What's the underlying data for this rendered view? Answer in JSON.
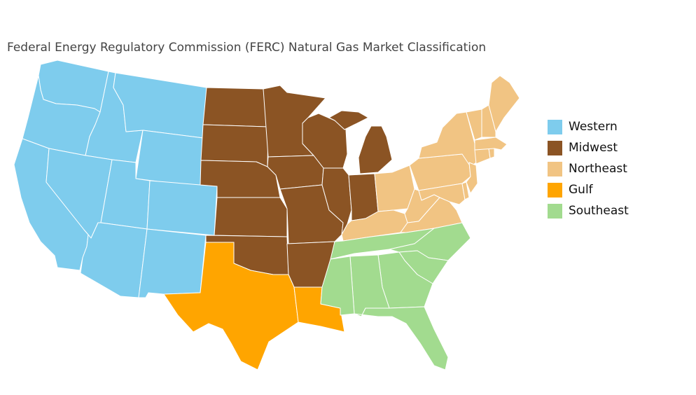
{
  "title": "Federal Energy Regulatory Commission (FERC) Natural Gas Market Classification",
  "regions": [
    {
      "key": "western",
      "name": "Western",
      "color": "#7ecced"
    },
    {
      "key": "midwest",
      "name": "Midwest",
      "color": "#8b5424"
    },
    {
      "key": "northeast",
      "name": "Northeast",
      "color": "#f1c483"
    },
    {
      "key": "gulf",
      "name": "Gulf",
      "color": "#ffa500"
    },
    {
      "key": "southeast",
      "name": "Southeast",
      "color": "#a2db8f"
    }
  ],
  "state_regions": {
    "WA": "western",
    "OR": "western",
    "CA": "western",
    "ID": "western",
    "NV": "western",
    "MT": "western",
    "WY": "western",
    "UT": "western",
    "CO": "western",
    "AZ": "western",
    "NM": "western",
    "ND": "midwest",
    "SD": "midwest",
    "NE": "midwest",
    "KS": "midwest",
    "OK": "midwest",
    "MN": "midwest",
    "IA": "midwest",
    "MO": "midwest",
    "AR": "midwest",
    "WI": "midwest",
    "IL": "midwest",
    "MI": "midwest",
    "IN": "midwest",
    "OH": "northeast",
    "KY": "northeast",
    "WV": "northeast",
    "VA": "northeast",
    "PA": "northeast",
    "NY": "northeast",
    "MD": "northeast",
    "DE": "northeast",
    "NJ": "northeast",
    "CT": "northeast",
    "RI": "northeast",
    "MA": "northeast",
    "VT": "northeast",
    "NH": "northeast",
    "ME": "northeast",
    "TX": "gulf",
    "LA": "gulf",
    "TN": "southeast",
    "NC": "southeast",
    "SC": "southeast",
    "GA": "southeast",
    "AL": "southeast",
    "MS": "southeast",
    "FL": "southeast"
  }
}
